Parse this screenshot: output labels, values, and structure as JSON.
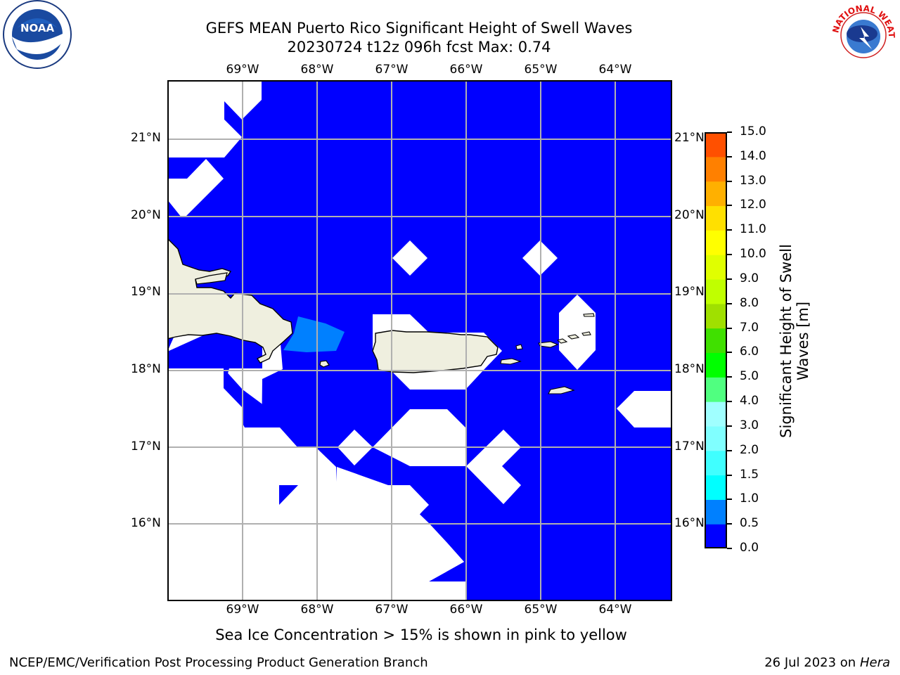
{
  "header": {
    "title_line1": "GEFS MEAN Puerto Rico Significant Height of Swell Waves",
    "title_line2": "20230724 t12z 096h fcst   Max: 0.74"
  },
  "logos": {
    "noaa_text": "NOAA",
    "nws_text": "NATIONAL WEATHER SERVICE"
  },
  "map": {
    "longitude_labels": [
      "69°W",
      "68°W",
      "67°W",
      "66°W",
      "65°W",
      "64°W"
    ],
    "latitude_labels": [
      "21°N",
      "20°N",
      "19°N",
      "18°N",
      "17°N",
      "16°N"
    ],
    "ocean_color": "#0000ff",
    "land_color": "#efefdf",
    "shallow_color": "#0080ff"
  },
  "colorbar": {
    "label_line1": "Significant Height of Swell",
    "label_line2": "Waves [m]",
    "ticks": [
      "0.0",
      "0.5",
      "1.0",
      "1.5",
      "2.0",
      "3.0",
      "4.0",
      "5.0",
      "6.0",
      "7.0",
      "8.0",
      "9.0",
      "10.0",
      "11.0",
      "12.0",
      "13.0",
      "14.0",
      "15.0"
    ],
    "colors": [
      "#0000ff",
      "#0080ff",
      "#00ffff",
      "#40ffff",
      "#80ffff",
      "#a0ffff",
      "#50ff80",
      "#00ff00",
      "#40e000",
      "#a0e000",
      "#c0ff00",
      "#e0ff00",
      "#ffff00",
      "#ffe000",
      "#ffb000",
      "#ff8000",
      "#ff5000",
      "#ff2000",
      "#ff0000"
    ]
  },
  "footer": {
    "note": "Sea Ice Concentration > 15% is shown in pink to yellow",
    "credit": "NCEP/EMC/Verification Post Processing Product Generation Branch",
    "date_prefix": "26 Jul 2023 on ",
    "host": "Hera"
  }
}
